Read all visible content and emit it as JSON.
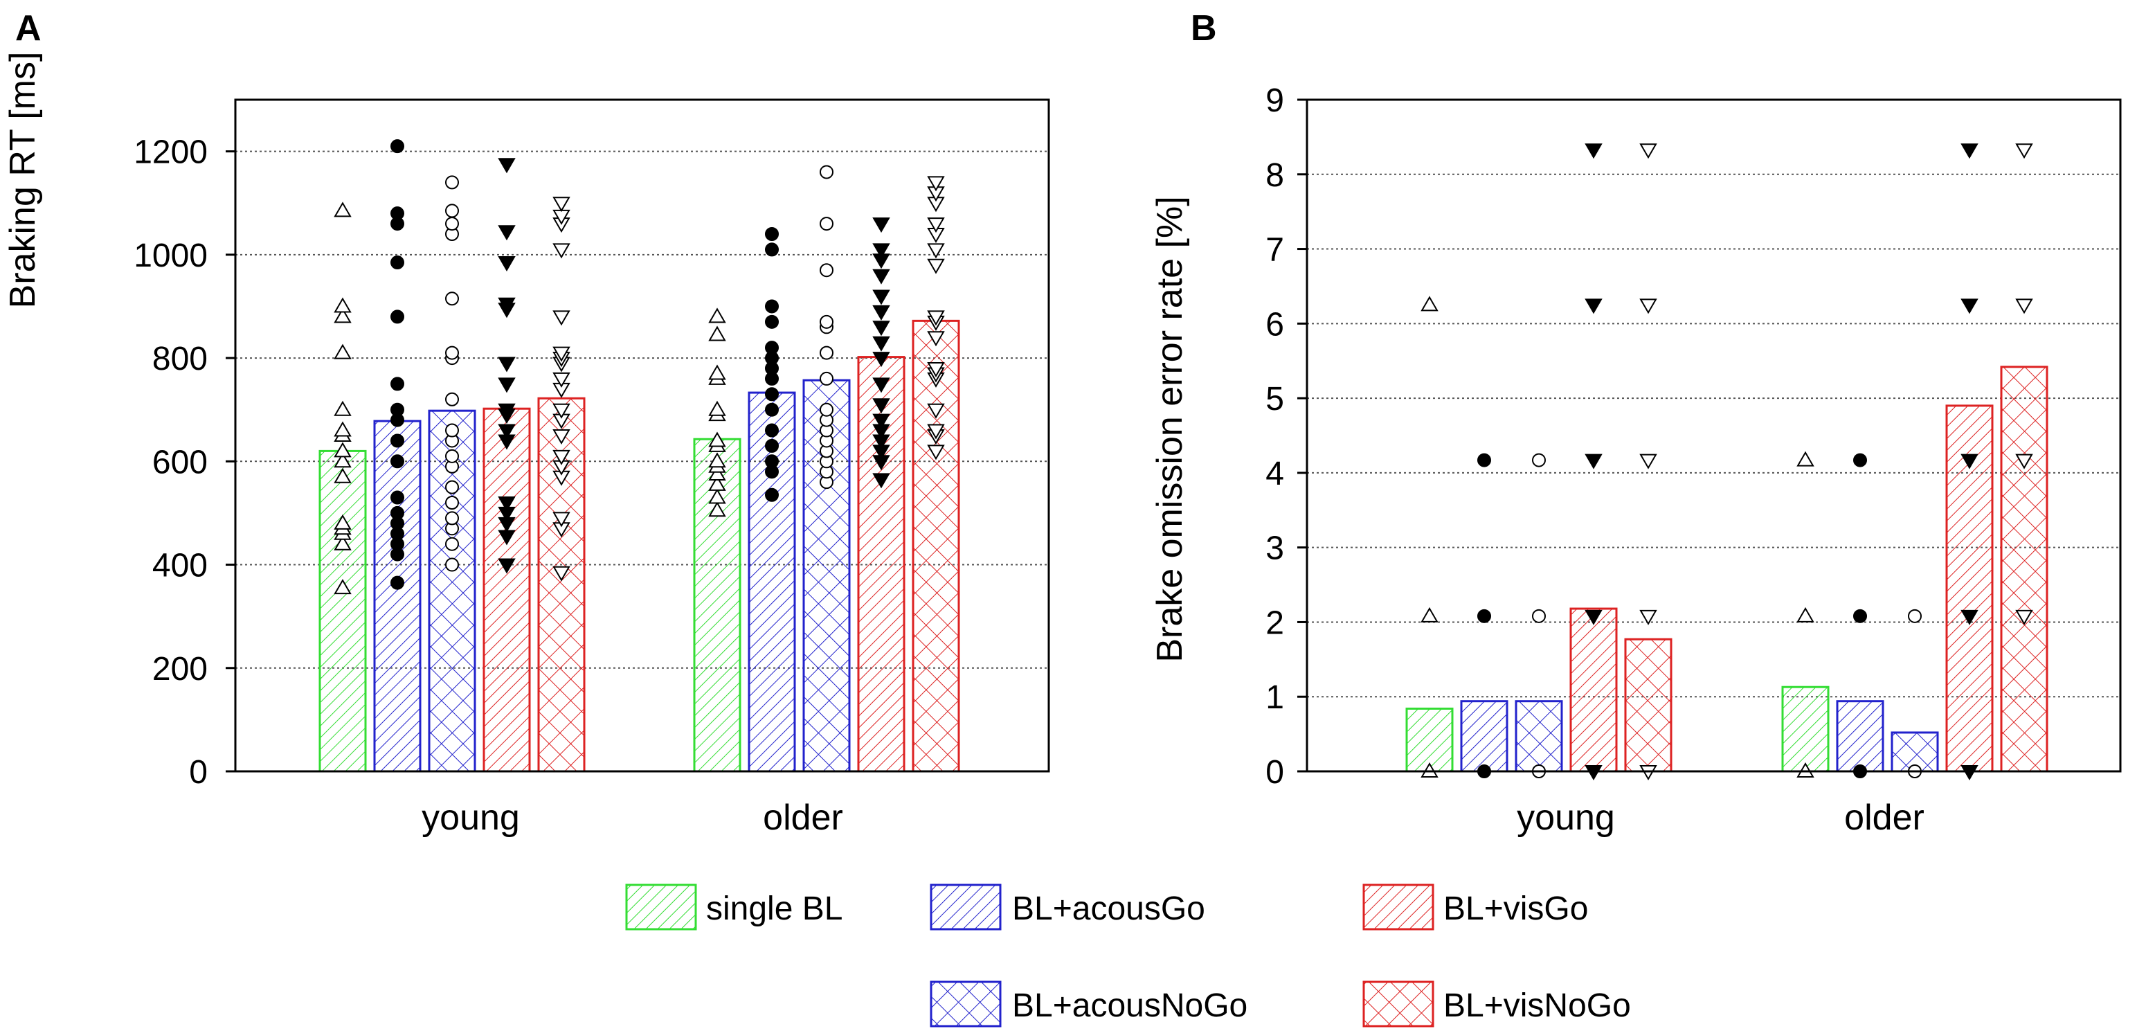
{
  "panels": [
    {
      "letter": "A",
      "title": "",
      "type": "bar",
      "categories": [
        "young",
        "older"
      ],
      "ylabel": "Braking RT [ms]",
      "ylim": [
        0,
        1300
      ],
      "yticks": [
        0,
        200,
        400,
        600,
        800,
        1000,
        1200
      ],
      "grid": true,
      "series": [
        {
          "name": "single BL",
          "values": [
            620,
            643
          ]
        },
        {
          "name": "BL+acousGo",
          "values": [
            678,
            733
          ]
        },
        {
          "name": "BL+acousNoGo",
          "values": [
            698,
            757
          ]
        },
        {
          "name": "BL+visGo",
          "values": [
            702,
            802
          ]
        },
        {
          "name": "BL+visNoGo",
          "values": [
            722,
            872
          ]
        }
      ],
      "points": [
        [
          [
            355,
            440,
            460,
            470,
            480,
            570,
            600,
            620,
            650,
            660,
            700,
            810,
            880,
            900,
            1085
          ],
          [
            365,
            420,
            440,
            460,
            480,
            500,
            530,
            600,
            640,
            680,
            700,
            750,
            880,
            985,
            1060,
            1080,
            1210
          ],
          [
            400,
            440,
            470,
            490,
            520,
            550,
            590,
            610,
            640,
            660,
            720,
            800,
            810,
            915,
            1040,
            1060,
            1085,
            1140
          ],
          [
            400,
            455,
            480,
            500,
            520,
            640,
            660,
            690,
            700,
            750,
            790,
            895,
            905,
            985,
            1045,
            1175
          ],
          [
            385,
            470,
            490,
            570,
            590,
            610,
            650,
            680,
            700,
            740,
            760,
            790,
            800,
            810,
            880,
            1010,
            1060,
            1075,
            1100
          ]
        ],
        [
          [
            505,
            530,
            555,
            575,
            590,
            600,
            630,
            640,
            690,
            700,
            760,
            770,
            845,
            880
          ],
          [
            535,
            580,
            600,
            630,
            660,
            700,
            730,
            760,
            780,
            800,
            820,
            870,
            900,
            1010,
            1040
          ],
          [
            560,
            580,
            600,
            620,
            640,
            660,
            680,
            700,
            760,
            810,
            860,
            870,
            970,
            1060,
            1160
          ],
          [
            565,
            600,
            620,
            640,
            660,
            680,
            710,
            750,
            800,
            830,
            860,
            890,
            920,
            960,
            990,
            1010,
            1060
          ],
          [
            620,
            650,
            660,
            700,
            760,
            770,
            780,
            840,
            870,
            880,
            980,
            1010,
            1040,
            1060,
            1100,
            1120,
            1140
          ]
        ]
      ]
    },
    {
      "letter": "B",
      "title": "",
      "type": "bar",
      "categories": [
        "young",
        "older"
      ],
      "ylabel": "Brake omission error rate [%]",
      "ylim": [
        0,
        9
      ],
      "yticks": [
        0,
        1,
        2,
        3,
        4,
        5,
        6,
        7,
        8,
        9
      ],
      "grid": true,
      "series": [
        {
          "name": "single BL",
          "values": [
            0.84,
            1.13
          ]
        },
        {
          "name": "BL+acousGo",
          "values": [
            0.94,
            0.94
          ]
        },
        {
          "name": "BL+acousNoGo",
          "values": [
            0.94,
            0.52
          ]
        },
        {
          "name": "BL+visGo",
          "values": [
            2.18,
            4.9
          ]
        },
        {
          "name": "BL+visNoGo",
          "values": [
            1.77,
            5.42
          ]
        }
      ],
      "points": [
        [
          [
            0,
            2.08,
            6.25
          ],
          [
            0,
            2.08,
            4.17
          ],
          [
            0,
            2.08,
            4.17
          ],
          [
            0,
            2.08,
            4.17,
            6.25,
            8.33
          ],
          [
            0,
            2.08,
            4.17,
            6.25,
            8.33
          ]
        ],
        [
          [
            0,
            2.08,
            4.17
          ],
          [
            0,
            2.08,
            4.17
          ],
          [
            0,
            2.08
          ],
          [
            0,
            2.08,
            4.17,
            6.25,
            8.33
          ],
          [
            2.08,
            4.17,
            6.25,
            8.33
          ]
        ]
      ]
    }
  ],
  "legend": [
    {
      "label": "single BL",
      "color": "#33dd33",
      "pattern": "hatch"
    },
    {
      "label": "BL+acousGo",
      "color": "#2222cc",
      "pattern": "hatch"
    },
    {
      "label": "BL+visGo",
      "color": "#dd2222",
      "pattern": "hatch"
    },
    {
      "label": "BL+acousNoGo",
      "color": "#2222cc",
      "pattern": "cross"
    },
    {
      "label": "BL+visNoGo",
      "color": "#dd2222",
      "pattern": "cross"
    }
  ],
  "series_style": [
    {
      "color": "#33dd33",
      "pattern": "hatch",
      "marker": "tri-up-open"
    },
    {
      "color": "#2222cc",
      "pattern": "hatch",
      "marker": "circle-filled"
    },
    {
      "color": "#2222cc",
      "pattern": "cross",
      "marker": "circle-open"
    },
    {
      "color": "#dd2222",
      "pattern": "hatch",
      "marker": "tri-down-filled"
    },
    {
      "color": "#dd2222",
      "pattern": "cross",
      "marker": "tri-down-open"
    }
  ]
}
